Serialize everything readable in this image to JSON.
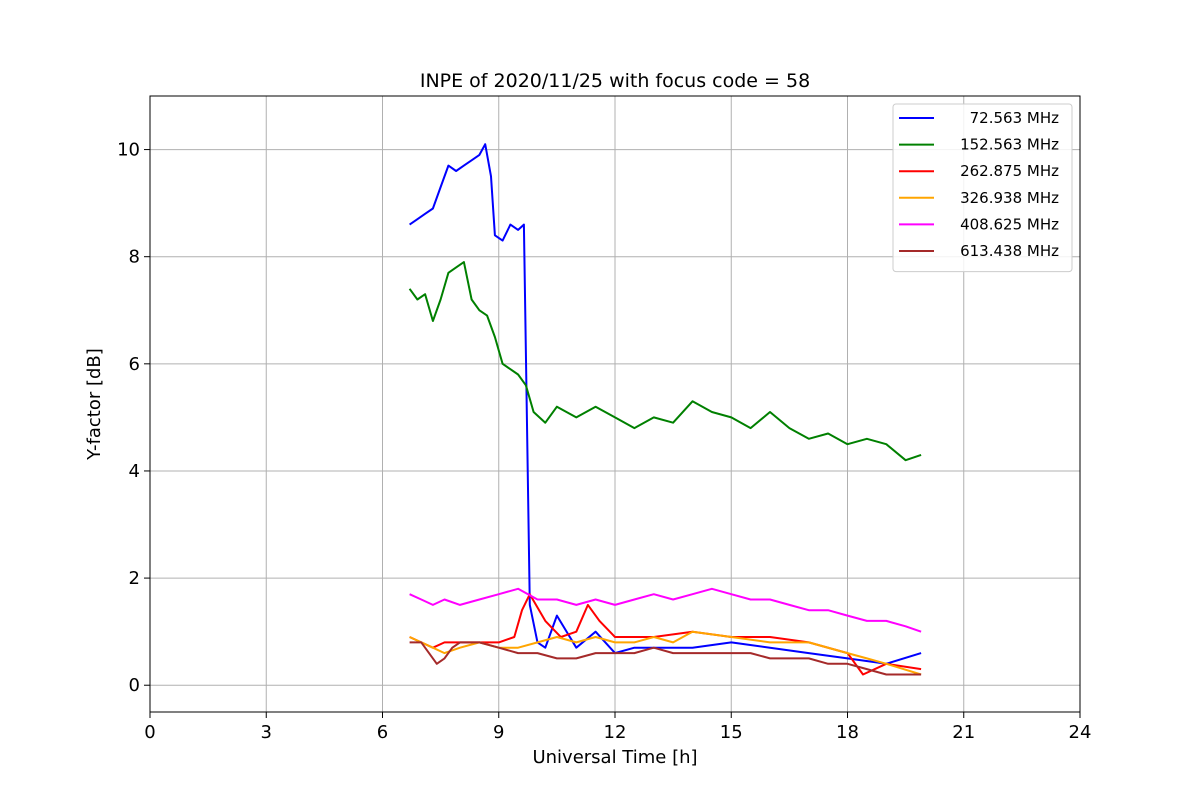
{
  "chart_data": {
    "type": "line",
    "title": "INPE of 2020/11/25 with focus code = 58",
    "xlabel": "Universal Time [h]",
    "ylabel": "Y-factor [dB]",
    "xlim": [
      0,
      24
    ],
    "ylim": [
      -0.5,
      11
    ],
    "xticks": [
      0,
      3,
      6,
      9,
      12,
      15,
      18,
      21,
      24
    ],
    "yticks": [
      0,
      2,
      4,
      6,
      8,
      10
    ],
    "grid": true,
    "legend_position": "top-right",
    "series": [
      {
        "name": "72.563 MHz",
        "color": "#0000ff",
        "x": [
          6.7,
          6.9,
          7.1,
          7.3,
          7.5,
          7.7,
          7.9,
          8.1,
          8.3,
          8.5,
          8.65,
          8.8,
          8.9,
          9.1,
          9.3,
          9.5,
          9.65,
          9.8,
          10.0,
          10.2,
          10.5,
          11.0,
          11.5,
          12.0,
          12.5,
          13.0,
          14.0,
          15.0,
          16.0,
          17.0,
          18.0,
          19.0,
          19.9
        ],
        "y": [
          8.6,
          8.7,
          8.8,
          8.9,
          9.3,
          9.7,
          9.6,
          9.7,
          9.8,
          9.9,
          10.1,
          9.5,
          8.4,
          8.3,
          8.6,
          8.5,
          8.6,
          1.5,
          0.8,
          0.7,
          1.3,
          0.7,
          1.0,
          0.6,
          0.7,
          0.7,
          0.7,
          0.8,
          0.7,
          0.6,
          0.5,
          0.4,
          0.6
        ]
      },
      {
        "name": "152.563 MHz",
        "color": "#008000",
        "x": [
          6.7,
          6.9,
          7.1,
          7.3,
          7.5,
          7.7,
          7.9,
          8.1,
          8.3,
          8.5,
          8.7,
          8.9,
          9.1,
          9.3,
          9.5,
          9.7,
          9.9,
          10.2,
          10.5,
          11.0,
          11.5,
          12.0,
          12.5,
          13.0,
          13.5,
          14.0,
          14.5,
          15.0,
          15.5,
          16.0,
          16.5,
          17.0,
          17.5,
          18.0,
          18.5,
          19.0,
          19.5,
          19.9
        ],
        "y": [
          7.4,
          7.2,
          7.3,
          6.8,
          7.2,
          7.7,
          7.8,
          7.9,
          7.2,
          7.0,
          6.9,
          6.5,
          6.0,
          5.9,
          5.8,
          5.6,
          5.1,
          4.9,
          5.2,
          5.0,
          5.2,
          5.0,
          4.8,
          5.0,
          4.9,
          5.3,
          5.1,
          5.0,
          4.8,
          5.1,
          4.8,
          4.6,
          4.7,
          4.5,
          4.6,
          4.5,
          4.2,
          4.3
        ]
      },
      {
        "name": "262.875 MHz",
        "color": "#ff0000",
        "x": [
          6.7,
          7.0,
          7.3,
          7.6,
          8.0,
          8.5,
          9.0,
          9.4,
          9.6,
          9.8,
          10.2,
          10.6,
          11.0,
          11.3,
          11.6,
          12.0,
          13.0,
          14.0,
          15.0,
          16.0,
          17.0,
          18.0,
          18.4,
          19.0,
          19.9
        ],
        "y": [
          0.9,
          0.8,
          0.7,
          0.8,
          0.8,
          0.8,
          0.8,
          0.9,
          1.4,
          1.7,
          1.2,
          0.9,
          1.0,
          1.5,
          1.2,
          0.9,
          0.9,
          1.0,
          0.9,
          0.9,
          0.8,
          0.6,
          0.2,
          0.4,
          0.3
        ]
      },
      {
        "name": "326.938 MHz",
        "color": "#ffa500",
        "x": [
          6.7,
          7.0,
          7.3,
          7.6,
          8.0,
          8.5,
          9.0,
          9.5,
          10.0,
          10.5,
          11.0,
          11.5,
          12.0,
          12.5,
          13.0,
          13.5,
          14.0,
          15.0,
          16.0,
          17.0,
          18.0,
          18.5,
          19.0,
          19.9
        ],
        "y": [
          0.9,
          0.8,
          0.7,
          0.6,
          0.7,
          0.8,
          0.7,
          0.7,
          0.8,
          0.9,
          0.8,
          0.9,
          0.8,
          0.8,
          0.9,
          0.8,
          1.0,
          0.9,
          0.8,
          0.8,
          0.6,
          0.5,
          0.4,
          0.2
        ]
      },
      {
        "name": "408.625 MHz",
        "color": "#ff00ff",
        "x": [
          6.7,
          7.0,
          7.3,
          7.6,
          8.0,
          8.5,
          9.0,
          9.5,
          10.0,
          10.5,
          11.0,
          11.5,
          12.0,
          12.5,
          13.0,
          13.5,
          14.0,
          14.5,
          15.0,
          15.5,
          16.0,
          16.5,
          17.0,
          17.5,
          18.0,
          18.5,
          19.0,
          19.5,
          19.9
        ],
        "y": [
          1.7,
          1.6,
          1.5,
          1.6,
          1.5,
          1.6,
          1.7,
          1.8,
          1.6,
          1.6,
          1.5,
          1.6,
          1.5,
          1.6,
          1.7,
          1.6,
          1.7,
          1.8,
          1.7,
          1.6,
          1.6,
          1.5,
          1.4,
          1.4,
          1.3,
          1.2,
          1.2,
          1.1,
          1.0
        ]
      },
      {
        "name": "613.438 MHz",
        "color": "#a52a2a",
        "x": [
          6.7,
          7.0,
          7.2,
          7.4,
          7.6,
          7.8,
          8.0,
          8.5,
          9.0,
          9.5,
          10.0,
          10.5,
          11.0,
          11.5,
          12.0,
          12.5,
          13.0,
          13.5,
          14.0,
          14.5,
          15.0,
          15.5,
          16.0,
          16.5,
          17.0,
          17.5,
          18.0,
          18.5,
          19.0,
          19.5,
          19.9
        ],
        "y": [
          0.8,
          0.8,
          0.6,
          0.4,
          0.5,
          0.7,
          0.8,
          0.8,
          0.7,
          0.6,
          0.6,
          0.5,
          0.5,
          0.6,
          0.6,
          0.6,
          0.7,
          0.6,
          0.6,
          0.6,
          0.6,
          0.6,
          0.5,
          0.5,
          0.5,
          0.4,
          0.4,
          0.3,
          0.2,
          0.2,
          0.2
        ]
      }
    ]
  }
}
